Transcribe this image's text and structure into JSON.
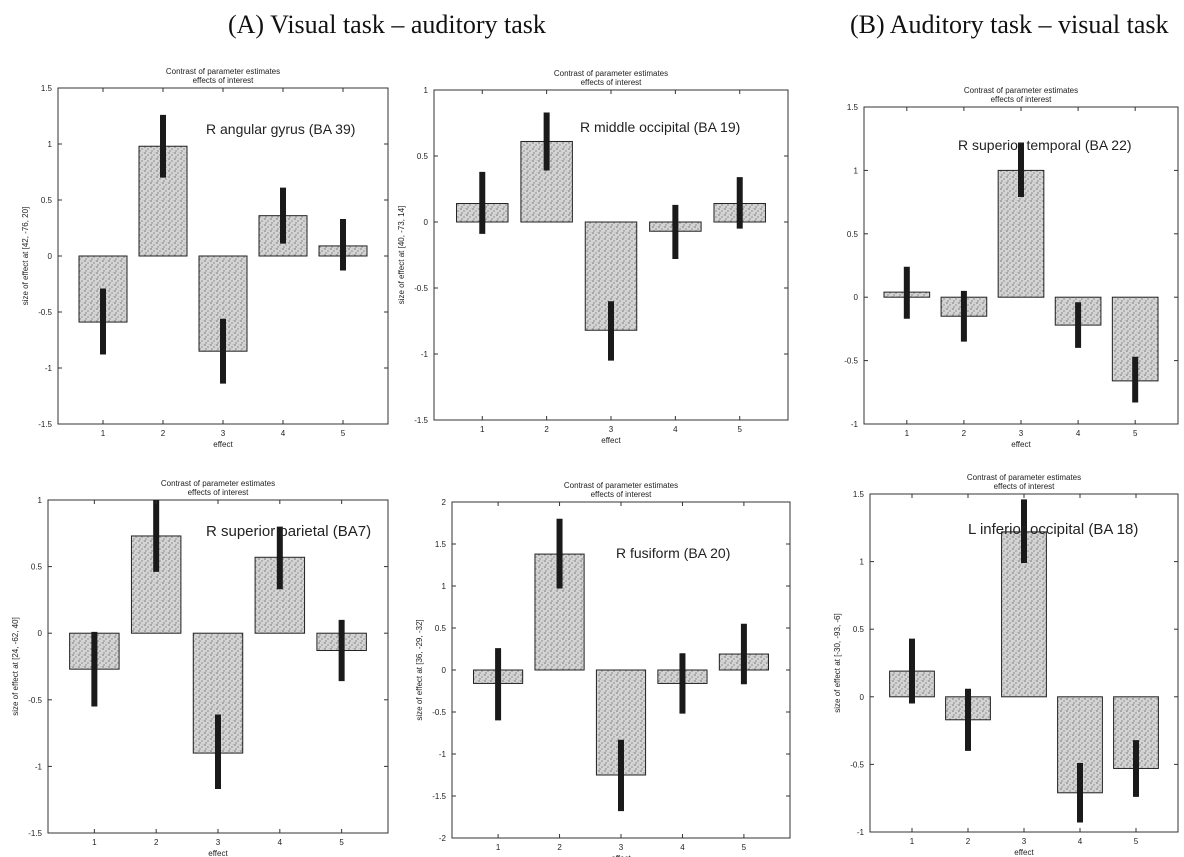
{
  "headings": {
    "a": "(A) Visual task – auditory task",
    "b": "(B) Auditory task – visual task"
  },
  "chart_data": [
    {
      "id": "c1",
      "type": "bar",
      "title": "Contrast of parameter estimates",
      "subtitle": "effects of interest",
      "annotation": "R angular gyrus (BA 39)",
      "xlabel": "effect",
      "ylabel": "size of effect at [42, -76, 20]",
      "categories": [
        "1",
        "2",
        "3",
        "4",
        "5"
      ],
      "values": [
        -0.59,
        0.98,
        -0.85,
        0.36,
        0.09
      ],
      "errors": [
        [
          -0.88,
          -0.29
        ],
        [
          0.7,
          1.26
        ],
        [
          -1.14,
          -0.56
        ],
        [
          0.11,
          0.61
        ],
        [
          -0.13,
          0.33
        ]
      ],
      "ylim": [
        -1.5,
        1.5
      ],
      "yticks": [
        "-1.5",
        "-1",
        "-0.5",
        "0",
        "0.5",
        "1",
        "1.5"
      ],
      "tick_values": [
        -1.5,
        -1,
        -0.5,
        0,
        0.5,
        1,
        1.5
      ],
      "grid": false,
      "legend": "none"
    },
    {
      "id": "c2",
      "type": "bar",
      "title": "Contrast of parameter estimates",
      "subtitle": "effects of interest",
      "annotation": "R middle occipital (BA 19)",
      "xlabel": "effect",
      "ylabel": "size of effect at [40, -73, 14]",
      "categories": [
        "1",
        "2",
        "3",
        "4",
        "5"
      ],
      "values": [
        0.14,
        0.61,
        -0.82,
        -0.07,
        0.14
      ],
      "errors": [
        [
          -0.09,
          0.38
        ],
        [
          0.39,
          0.83
        ],
        [
          -1.05,
          -0.6
        ],
        [
          -0.28,
          0.13
        ],
        [
          -0.05,
          0.34
        ]
      ],
      "ylim": [
        -1.5,
        1
      ],
      "yticks": [
        "-1.5",
        "-1",
        "-0.5",
        "0",
        "0.5",
        "1"
      ],
      "tick_values": [
        -1.5,
        -1,
        -0.5,
        0,
        0.5,
        1
      ],
      "grid": false,
      "legend": "none"
    },
    {
      "id": "c3",
      "type": "bar",
      "title": "Contrast of parameter estimates",
      "subtitle": "effects of interest",
      "annotation": "R superior temporal (BA 22)",
      "xlabel": "effect",
      "ylabel": "",
      "categories": [
        "1",
        "2",
        "3",
        "4",
        "5"
      ],
      "values": [
        0.04,
        -0.15,
        1.0,
        -0.22,
        -0.66
      ],
      "errors": [
        [
          -0.17,
          0.24
        ],
        [
          -0.35,
          0.05
        ],
        [
          0.79,
          1.22
        ],
        [
          -0.4,
          -0.04
        ],
        [
          -0.83,
          -0.47
        ]
      ],
      "ylim": [
        -1,
        1.5
      ],
      "yticks": [
        "-1",
        "-0.5",
        "0",
        "0.5",
        "1",
        "1.5"
      ],
      "tick_values": [
        -1,
        -0.5,
        0,
        0.5,
        1,
        1.5
      ],
      "grid": false,
      "legend": "none"
    },
    {
      "id": "c4",
      "type": "bar",
      "title": "Contrast of parameter estimates",
      "subtitle": "effects of interest",
      "annotation": "R superior parietal (BA7)",
      "xlabel": "effect",
      "ylabel": "size of effect at [24, -62, 40]",
      "categories": [
        "1",
        "2",
        "3",
        "4",
        "5"
      ],
      "values": [
        -0.27,
        0.73,
        -0.9,
        0.57,
        -0.13
      ],
      "errors": [
        [
          -0.55,
          0.01
        ],
        [
          0.46,
          1.0
        ],
        [
          -1.17,
          -0.61
        ],
        [
          0.33,
          0.8
        ],
        [
          -0.36,
          0.1
        ]
      ],
      "ylim": [
        -1.5,
        1
      ],
      "yticks": [
        "-1.5",
        "-1",
        "-0.5",
        "0",
        "0.5",
        "1"
      ],
      "tick_values": [
        -1.5,
        -1,
        -0.5,
        0,
        0.5,
        1
      ],
      "grid": false,
      "legend": "none"
    },
    {
      "id": "c5",
      "type": "bar",
      "title": "Contrast of parameter estimates",
      "subtitle": "effects of interest",
      "annotation": "R fusiform (BA 20)",
      "xlabel": "effect",
      "ylabel": "size of effect at [36, -29, -32]",
      "categories": [
        "1",
        "2",
        "3",
        "4",
        "5"
      ],
      "values": [
        -0.16,
        1.38,
        -1.25,
        -0.16,
        0.19
      ],
      "errors": [
        [
          -0.6,
          0.26
        ],
        [
          0.97,
          1.8
        ],
        [
          -1.68,
          -0.83
        ],
        [
          -0.52,
          0.2
        ],
        [
          -0.17,
          0.55
        ]
      ],
      "ylim": [
        -2,
        2
      ],
      "yticks": [
        "-2",
        "-1.5",
        "-1",
        "-0.5",
        "0",
        "0.5",
        "1",
        "1.5",
        "2"
      ],
      "tick_values": [
        -2,
        -1.5,
        -1,
        -0.5,
        0,
        0.5,
        1,
        1.5,
        2
      ],
      "grid": false,
      "legend": "none"
    },
    {
      "id": "c6",
      "type": "bar",
      "title": "Contrast of parameter estimates",
      "subtitle": "effects of interest",
      "annotation": "L inferior occipital (BA 18)",
      "xlabel": "effect",
      "ylabel": "size of effect at [-30, -93, -6]",
      "categories": [
        "1",
        "2",
        "3",
        "4",
        "5"
      ],
      "values": [
        0.19,
        -0.17,
        1.22,
        -0.71,
        -0.53
      ],
      "errors": [
        [
          -0.05,
          0.43
        ],
        [
          -0.4,
          0.06
        ],
        [
          0.99,
          1.46
        ],
        [
          -0.93,
          -0.49
        ],
        [
          -0.74,
          -0.32
        ]
      ],
      "ylim": [
        -1,
        1.5
      ],
      "yticks": [
        "-1",
        "-0.5",
        "0",
        "0.5",
        "1",
        "1.5"
      ],
      "tick_values": [
        -1,
        -0.5,
        0,
        0.5,
        1,
        1.5
      ],
      "grid": false,
      "legend": "none"
    }
  ]
}
